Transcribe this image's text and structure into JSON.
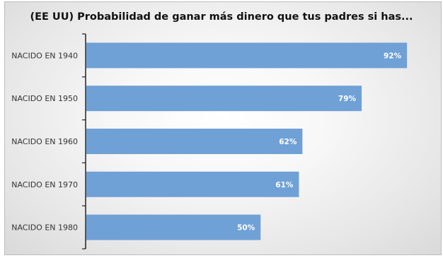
{
  "chart_data": {
    "type": "bar",
    "orientation": "horizontal",
    "title": "(EE UU) Probabilidad de ganar más dinero que tus padres si has...",
    "categories": [
      "NACIDO EN 1940",
      "NACIDO EN 1950",
      "NACIDO EN 1960",
      "NACIDO EN 1970",
      "NACIDO EN 1980"
    ],
    "values": [
      92,
      79,
      62,
      61,
      50
    ],
    "data_labels": [
      "92%",
      "79%",
      "62%",
      "61%",
      "50%"
    ],
    "unit": "%",
    "bar_color": "#6fa1d6",
    "grid": false,
    "legend": "none"
  }
}
